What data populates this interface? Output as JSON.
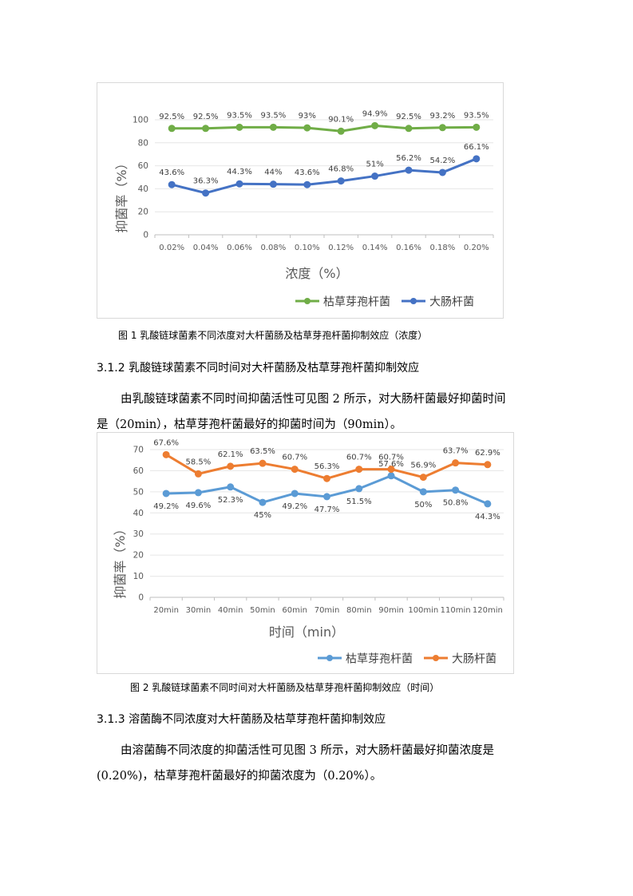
{
  "chart_data": [
    {
      "type": "line",
      "ylabel": "抑菌率（%）",
      "xlabel": "浓度（%）",
      "categories": [
        "0.02%",
        "0.04%",
        "0.06%",
        "0.08%",
        "0.10%",
        "0.12%",
        "0.14%",
        "0.16%",
        "0.18%",
        "0.20%"
      ],
      "ylim": [
        0,
        100
      ],
      "yticks": [
        "0",
        "20",
        "40",
        "60",
        "80",
        "100"
      ],
      "grid": true,
      "legend_position": "bottom-right",
      "series": [
        {
          "name": "枯草芽孢杆菌",
          "color": "#70ad47",
          "values": [
            92.5,
            92.5,
            93.5,
            93.5,
            93,
            90.1,
            94.9,
            92.5,
            93.2,
            93.5
          ],
          "labels": [
            "92.5%",
            "92.5%",
            "93.5%",
            "93.5%",
            "93%",
            "90.1%",
            "94.9%",
            "92.5%",
            "93.2%",
            "93.5%"
          ]
        },
        {
          "name": "大肠杆菌",
          "color": "#4472c4",
          "values": [
            43.6,
            36.3,
            44.3,
            44,
            43.6,
            46.8,
            51,
            56.2,
            54.2,
            66.1
          ],
          "labels": [
            "43.6%",
            "36.3%",
            "44.3%",
            "44%",
            "43.6%",
            "46.8%",
            "51%",
            "56.2%",
            "54.2%",
            "66.1%"
          ]
        }
      ]
    },
    {
      "type": "line",
      "ylabel": "抑菌率（%）",
      "xlabel": "时间（min）",
      "categories": [
        "20min",
        "30min",
        "40min",
        "50min",
        "60min",
        "70min",
        "80min",
        "90min",
        "100min",
        "110min",
        "120min"
      ],
      "ylim": [
        0,
        70
      ],
      "yticks": [
        "0",
        "10",
        "20",
        "30",
        "40",
        "50",
        "60",
        "70"
      ],
      "grid": true,
      "legend_position": "bottom-right",
      "series": [
        {
          "name": "枯草芽孢杆菌",
          "color": "#5b9bd5",
          "values": [
            49.2,
            49.6,
            52.3,
            45,
            49.2,
            47.7,
            51.5,
            57.6,
            50,
            50.8,
            44.3
          ],
          "labels": [
            "49.2%",
            "49.6%",
            "52.3%",
            "45%",
            "49.2%",
            "47.7%",
            "51.5%",
            "57.6%",
            "50%",
            "50.8%",
            "44.3%"
          ]
        },
        {
          "name": "大肠杆菌",
          "color": "#ed7d31",
          "values": [
            67.6,
            58.5,
            62.1,
            63.5,
            60.7,
            56.3,
            60.7,
            60.7,
            56.9,
            63.7,
            62.9
          ],
          "labels": [
            "67.6%",
            "58.5%",
            "62.1%",
            "63.5%",
            "60.7%",
            "56.3%",
            "60.7%",
            "60.7%",
            "56.9%",
            "63.7%",
            "62.9%"
          ]
        }
      ]
    }
  ],
  "doc": {
    "caption1": "图 1 乳酸链球菌素不同浓度对大杆菌肠及枯草芽孢杆菌抑制效应（浓度）",
    "heading_312": "3.1.2 乳酸链球菌素不同时间对大杆菌肠及枯草芽孢杆菌抑制效应",
    "para_312_line1": "由乳酸链球菌素不同时间抑菌活性可见图 2 所示，对大肠杆菌最好抑菌时间",
    "para_312_line2": "是（20min），枯草芽孢杆菌最好的抑菌时间为（90min）。",
    "caption2": "图 2 乳酸链球菌素不同时间对大杆菌肠及枯草芽孢杆菌抑制效应（时间）",
    "heading_313": "3.1.3 溶菌酶不同浓度对大杆菌肠及枯草芽孢杆菌抑制效应",
    "para_313_line1": "由溶菌酶不同浓度的抑菌活性可见图 3 所示，对大肠杆菌最好抑菌浓度是",
    "para_313_line2": "(0.20%)，枯草芽孢杆菌最好的抑菌浓度为（0.20%）。"
  }
}
